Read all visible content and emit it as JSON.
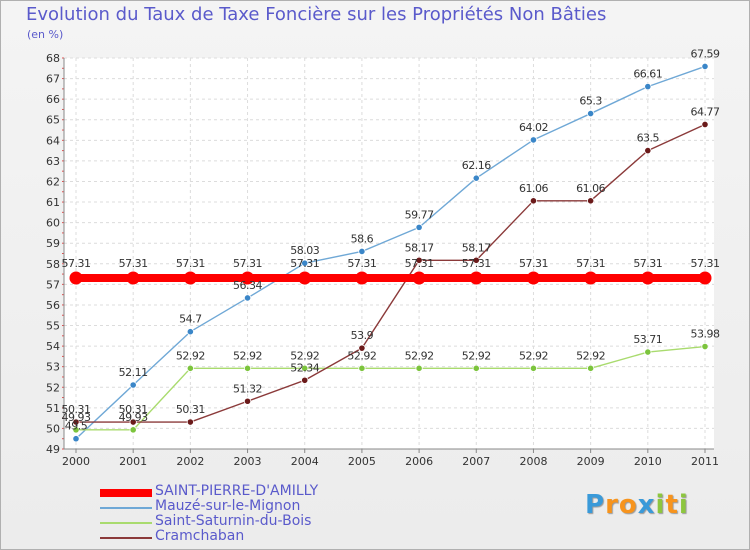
{
  "chart_data": {
    "type": "line",
    "title": "Evolution du Taux de Taxe Foncière sur les Propriétés Non Bâties",
    "ylabel": "(en %)",
    "xlabel": "",
    "categories": [
      "2000",
      "2001",
      "2002",
      "2003",
      "2004",
      "2005",
      "2006",
      "2007",
      "2008",
      "2009",
      "2010",
      "2011"
    ],
    "ylim": [
      49,
      68
    ],
    "yticks": [
      49,
      50,
      51,
      52,
      53,
      54,
      55,
      56,
      57,
      58,
      59,
      60,
      61,
      62,
      63,
      64,
      65,
      66,
      67,
      68
    ],
    "grid": true,
    "legend_position": "bottom-left",
    "series": [
      {
        "name": "SAINT-PIERRE-D'AMILLY",
        "color": "#ff0000",
        "values": [
          57.31,
          57.31,
          57.31,
          57.31,
          57.31,
          57.31,
          57.31,
          57.31,
          57.31,
          57.31,
          57.31,
          57.31
        ],
        "labels": [
          "57.31",
          "57.31",
          "57.31",
          "57.31",
          "57.31",
          "57.31",
          "57.31",
          "57.31",
          "57.31",
          "57.31",
          "57.31",
          "57.31"
        ]
      },
      {
        "name": "Mauzé-sur-le-Mignon",
        "color": "#6fa8d6",
        "marker": "#3a86c8",
        "values": [
          49.5,
          52.11,
          54.7,
          56.34,
          58.03,
          58.6,
          59.77,
          62.16,
          64.02,
          65.3,
          66.61,
          67.59
        ],
        "labels": [
          "49.5",
          "52.11",
          "54.7",
          "56.34",
          "58.03",
          "58.6",
          "59.77",
          "62.16",
          "64.02",
          "65.3",
          "66.61",
          "67.59"
        ]
      },
      {
        "name": "Saint-Saturnin-du-Bois",
        "color": "#a9db6e",
        "marker": "#7cc43d",
        "values": [
          49.93,
          49.93,
          52.92,
          52.92,
          52.92,
          52.92,
          52.92,
          52.92,
          52.92,
          52.92,
          53.71,
          53.98
        ],
        "labels": [
          "49.93",
          "49.93",
          "52.92",
          "52.92",
          "52.92",
          "52.92",
          "52.92",
          "52.92",
          "52.92",
          "52.92",
          "53.71",
          "53.98"
        ]
      },
      {
        "name": "Cramchaban",
        "color": "#8b3a3a",
        "marker": "#6b1a1a",
        "values": [
          50.31,
          50.31,
          50.31,
          51.32,
          52.34,
          53.9,
          58.17,
          58.17,
          61.06,
          61.06,
          63.5,
          64.77
        ],
        "labels": [
          "50.31",
          "50.31",
          "50.31",
          "51.32",
          "52.34",
          "53.9",
          "58.17",
          "58.17",
          "61.06",
          "61.06",
          "63.5",
          "64.77"
        ]
      }
    ]
  },
  "brand": {
    "letters": [
      "P",
      "r",
      "o",
      "x",
      "i",
      "t",
      "i"
    ],
    "colors": [
      "#3a9ad9",
      "#f7941d",
      "#f7941d",
      "#3a9ad9",
      "#8dc63f",
      "#f7941d",
      "#8dc63f"
    ]
  }
}
